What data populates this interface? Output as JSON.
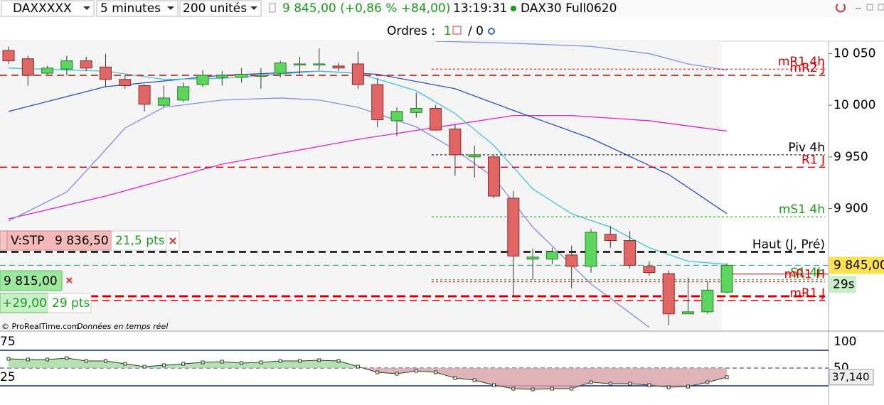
{
  "toolbar": {
    "instrument": "DAXXXXX",
    "interval": "5 minutes",
    "units": "200 unités",
    "quote": "9 845,00 (+0,86 % +84,00)",
    "time": "13:19:31",
    "name": "DAX30 Full0620"
  },
  "orders_bar": {
    "label": "Ordres :",
    "open": "1",
    "closed": "/ 0"
  },
  "chart_data": [
    {
      "type": "candlestick",
      "ylim": [
        9782,
        10062
      ],
      "yticks": [
        {
          "value": 10050,
          "label": "10 050"
        },
        {
          "value": 10000,
          "label": "10 000"
        },
        {
          "value": 9950,
          "label": "9 950"
        },
        {
          "value": 9900,
          "label": "9 900"
        }
      ],
      "candles": {
        "open": [
          10053,
          10045,
          10031,
          10035,
          10043,
          10037,
          10025,
          10019,
          10000,
          10005,
          10020,
          10027,
          10027,
          10028,
          10031,
          10039,
          10039,
          10038,
          10040,
          10020,
          9985,
          9993,
          9997,
          9977,
          9950,
          9950,
          9910,
          9851,
          9851,
          9855,
          9844,
          9875,
          9869,
          9844,
          9837,
          9798,
          9800,
          9819
        ],
        "high": [
          10057,
          10048,
          10038,
          10048,
          10047,
          10050,
          10029,
          10020,
          10019,
          10022,
          10034,
          10033,
          10036,
          10036,
          10043,
          10047,
          10055,
          10041,
          10052,
          10026,
          9998,
          10012,
          10000,
          9981,
          9961,
          9952,
          9917,
          9861,
          9862,
          9864,
          9880,
          9883,
          9878,
          9849,
          9840,
          9833,
          9830,
          9847
        ],
        "low": [
          10040,
          10019,
          10030,
          10029,
          10033,
          10018,
          10016,
          9994,
          9998,
          10003,
          10018,
          10019,
          10022,
          10016,
          10027,
          10030,
          10034,
          10033,
          10016,
          9979,
          9970,
          9988,
          9975,
          9932,
          9930,
          9910,
          9814,
          9831,
          9846,
          9823,
          9838,
          9862,
          9842,
          9835,
          9787,
          9798,
          9798,
          9818
        ],
        "close": [
          10043,
          10029,
          10036,
          10043,
          10036,
          10025,
          10019,
          10001,
          10007,
          10018,
          10029,
          10029,
          10030,
          10029,
          10041,
          10040,
          10040,
          10036,
          10020,
          9986,
          9994,
          9997,
          9976,
          9952,
          9952,
          9912,
          9854,
          9853,
          9858,
          9844,
          9877,
          9869,
          9845,
          9838,
          9798,
          9800,
          9821,
          9845
        ]
      },
      "up_color": "#5cd65c",
      "down_color": "#e06666",
      "lines": [
        {
          "color": "#e020d0",
          "x": [
            0,
            5,
            11,
            18,
            26,
            29,
            33,
            37
          ],
          "values": [
            9890,
            9912,
            9943,
            9967,
            9990,
            9990,
            9985,
            9975
          ]
        },
        {
          "color": "#2a4fc8",
          "x": [
            0,
            5,
            11,
            16,
            19,
            23,
            26,
            30,
            34,
            37
          ],
          "values": [
            9994,
            10018,
            10029,
            10033,
            10030,
            10016,
            9995,
            9968,
            9933,
            9895
          ]
        },
        {
          "color": "#3cc8d8",
          "x": [
            0,
            5,
            8,
            11,
            16,
            18,
            21,
            23,
            25,
            27,
            29,
            31,
            33,
            35,
            37
          ],
          "values": [
            10036,
            10033,
            10025,
            10026,
            10033,
            10031,
            10014,
            9992,
            9961,
            9919,
            9895,
            9882,
            9862,
            9849,
            9846
          ]
        },
        {
          "color": "#7f8fe0",
          "x": [
            22,
            26,
            30,
            33,
            35,
            37
          ],
          "values": [
            10062,
            10060,
            10057,
            10050,
            10040,
            10034
          ]
        },
        {
          "color": "#7f8fe0",
          "x": [
            0,
            3,
            5,
            6,
            8,
            11,
            14,
            16,
            18,
            21,
            23,
            25,
            27,
            30,
            33
          ],
          "values": [
            9888,
            9916,
            9957,
            9978,
            9998,
            10005,
            10007,
            10005,
            9998,
            9979,
            9957,
            9930,
            9882,
            9827,
            9785
          ]
        }
      ],
      "levels": [
        {
          "name": "mR1 4h",
          "value": 10035,
          "color": "#d40000",
          "style": "dotted"
        },
        {
          "name": "mR2 J",
          "value": 10029,
          "color": "#d40000",
          "style": "dashed"
        },
        {
          "name": "Piv 4h",
          "value": 9952,
          "color": "#000000",
          "style": "dotted"
        },
        {
          "name": "R1 J",
          "value": 9940,
          "color": "#d40000",
          "style": "dashed"
        },
        {
          "name": "mS1 4h",
          "value": 9892,
          "color": "#1e9a1e",
          "style": "dotted"
        },
        {
          "name": "Haut (J, Pré)",
          "value": 9858,
          "color": "#000000",
          "style": "dashed"
        },
        {
          "name": "S1 4h",
          "value": 9831,
          "color": "#1e9a1e",
          "style": "dotted"
        },
        {
          "name": "mR1 H",
          "value": 9829,
          "color": "#d40000",
          "style": "dotted"
        },
        {
          "name": "mR1 J",
          "value": 9811,
          "color": "#d40000",
          "style": "dashed"
        }
      ],
      "last_price": {
        "value": 9845,
        "label": "9 845,00"
      },
      "countdown": "29s",
      "orders": [
        {
          "side": "V:STP",
          "price": {
            "value": 9836.5,
            "label": "9 836,50"
          },
          "distance": "21,5 pts"
        },
        {
          "price": {
            "value": 9815,
            "label": "9 815,00"
          },
          "pnl": "+29,00",
          "pnl_pts": "29 pts"
        }
      ],
      "credit": "© ProRealTime.com",
      "credit_note": "Données en temps réel"
    },
    {
      "type": "line",
      "ylim": [
        0,
        100
      ],
      "yticks": [
        75,
        25
      ],
      "y2lim": [
        0,
        100
      ],
      "y2ticks": [
        100,
        50
      ],
      "values": [
        63,
        62,
        62,
        64,
        60,
        60,
        56,
        52,
        54,
        56,
        58,
        59,
        57,
        58,
        60,
        60,
        61,
        60,
        52,
        44,
        42,
        46,
        44,
        36,
        33,
        26,
        21,
        20,
        21,
        21,
        30,
        28,
        28,
        26,
        23,
        24,
        30,
        37.14
      ],
      "last_value": {
        "value": 37.14,
        "label": "37,140"
      },
      "color": "#1a4a1a"
    }
  ]
}
